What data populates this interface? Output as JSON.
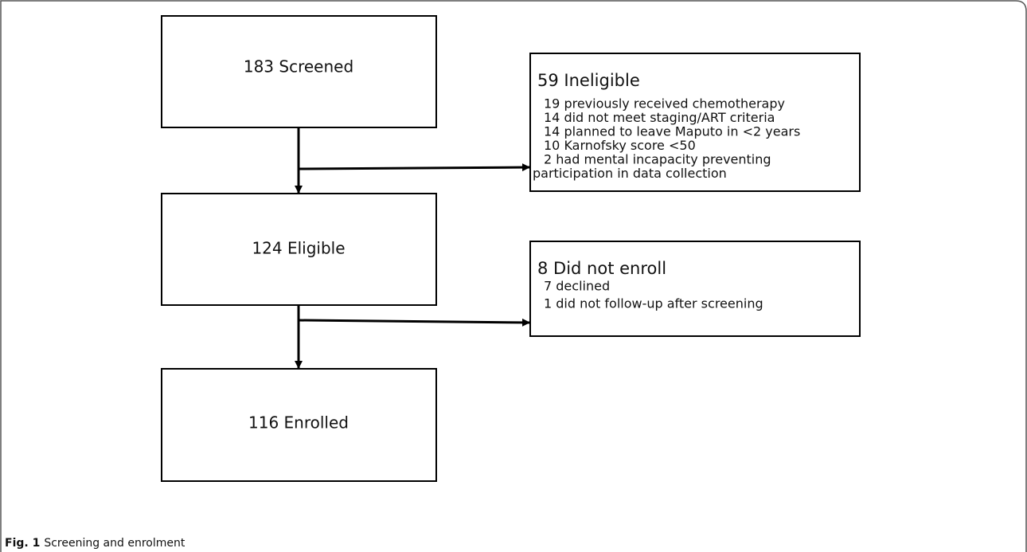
{
  "nodes": [
    {
      "label": "183 Screened"
    },
    {
      "label": "124 Eligible"
    },
    {
      "label": "116 Enrolled"
    },
    {
      "label": "59 Ineligible",
      "lines": [
        "19 previously received chemotherapy",
        "14 did not meet staging/ART criteria",
        "14 planned to leave Maputo in <2 years",
        "10 Karnofsky score <50",
        "2 had mental incapacity preventing",
        "participation in data collection"
      ]
    },
    {
      "label": "8 Did not enroll",
      "lines": [
        "7 declined",
        "1 did not follow-up after screening"
      ]
    }
  ],
  "caption": {
    "label": "Fig. 1",
    "text": "Screening and enrolment"
  }
}
